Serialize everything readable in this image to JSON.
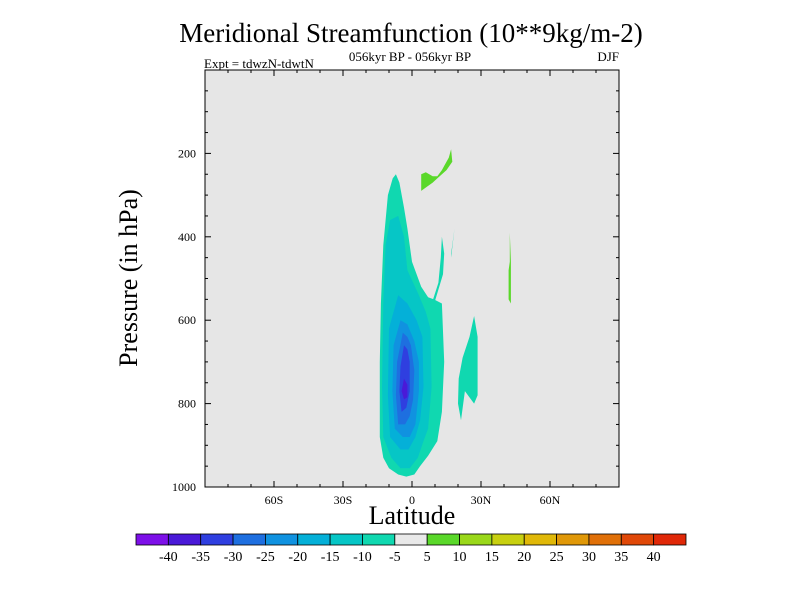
{
  "chart_data": {
    "type": "contour",
    "title": "Meridional Streamfunction (10**9kg/m-2)",
    "subtitle_left": "Expt = tdwzN-tdwtN",
    "subtitle_center": "056kyr BP - 056kyr BP",
    "subtitle_right": "DJF",
    "xlabel": "Latitude",
    "ylabel": "Pressure (in hPa)",
    "xlim": [
      -90,
      90
    ],
    "ylim": [
      0,
      1000
    ],
    "y_inverted": true,
    "x_ticks": [
      -60,
      -30,
      0,
      30,
      60
    ],
    "x_tick_labels": [
      "60S",
      "30S",
      "0",
      "30N",
      "60N"
    ],
    "y_ticks": [
      200,
      400,
      600,
      800,
      1000
    ],
    "y_tick_labels": [
      "200",
      "400",
      "600",
      "800",
      "1000"
    ],
    "plot_background": "#e6e6e6",
    "colorbar": {
      "levels": [
        -40,
        -35,
        -30,
        -25,
        -20,
        -15,
        -10,
        -5,
        5,
        10,
        15,
        20,
        25,
        30,
        35,
        40
      ],
      "labels": [
        "-40",
        "-35",
        "-30",
        "-25",
        "-20",
        "-15",
        "-10",
        "-5",
        "5",
        "10",
        "15",
        "20",
        "25",
        "30",
        "35",
        "40"
      ],
      "colors": [
        "#7d10e8",
        "#4a19d8",
        "#2f3fe0",
        "#1e6fe0",
        "#1092e0",
        "#04b0d8",
        "#06c6c6",
        "#10d8b0",
        "#e9e9e9",
        "#5ad82a",
        "#9ad81a",
        "#c8d010",
        "#e0b808",
        "#e09808",
        "#e07008",
        "#e04808",
        "#e02808"
      ]
    },
    "contours": [
      {
        "value_range": "-10 to -5",
        "color": "#10d8b0",
        "points": [
          [
            -8.4,
            260
          ],
          [
            -10.5,
            300
          ],
          [
            -12.5,
            420
          ],
          [
            -13.5,
            560
          ],
          [
            -14,
            700
          ],
          [
            -14,
            880
          ],
          [
            -12.5,
            930
          ],
          [
            -10,
            955
          ],
          [
            -6,
            970
          ],
          [
            -2.5,
            975
          ],
          [
            1,
            970
          ],
          [
            3.5,
            950
          ],
          [
            7,
            925
          ],
          [
            11,
            890
          ],
          [
            13,
            820
          ],
          [
            14,
            700
          ],
          [
            13,
            560
          ],
          [
            9.5,
            550
          ],
          [
            7,
            545
          ],
          [
            4,
            520
          ],
          [
            0,
            460
          ],
          [
            -2,
            380
          ],
          [
            -3.5,
            330
          ],
          [
            -5.5,
            270
          ],
          [
            -7,
            250
          ]
        ]
      },
      {
        "value_range": "-10 to -5",
        "color": "#10d8b0",
        "points": [
          [
            8.5,
            580
          ],
          [
            10.5,
            545
          ],
          [
            13.5,
            490
          ],
          [
            14,
            440
          ],
          [
            13,
            400
          ],
          [
            12.5,
            450
          ],
          [
            11.5,
            510
          ],
          [
            8,
            570
          ]
        ]
      },
      {
        "value_range": "-10 to -5",
        "color": "#10d8b0",
        "points": [
          [
            17,
            450
          ],
          [
            18.5,
            380
          ],
          [
            17.5,
            420
          ],
          [
            17,
            440
          ]
        ]
      },
      {
        "value_range": "-10 to -5",
        "color": "#10d8b0",
        "points": [
          [
            20.3,
            740
          ],
          [
            22,
            690
          ],
          [
            25,
            640
          ],
          [
            27,
            590
          ],
          [
            28.5,
            640
          ],
          [
            28.5,
            780
          ],
          [
            27,
            800
          ],
          [
            23,
            770
          ],
          [
            21.3,
            840
          ],
          [
            20,
            800
          ]
        ]
      },
      {
        "value_range": "-15 to -10",
        "color": "#06c6c6",
        "points": [
          [
            -9.5,
            360
          ],
          [
            -11.5,
            420
          ],
          [
            -12.5,
            560
          ],
          [
            -13,
            760
          ],
          [
            -12.5,
            880
          ],
          [
            -9,
            930
          ],
          [
            -5,
            955
          ],
          [
            -1,
            955
          ],
          [
            2.5,
            930
          ],
          [
            5,
            890
          ],
          [
            7,
            860
          ],
          [
            8.5,
            760
          ],
          [
            8,
            620
          ],
          [
            6,
            580
          ],
          [
            3,
            540
          ],
          [
            -2,
            480
          ],
          [
            -3.5,
            400
          ],
          [
            -6,
            350
          ]
        ]
      },
      {
        "value_range": "-20 to -15",
        "color": "#04b0d8",
        "points": [
          [
            -6,
            540
          ],
          [
            -10,
            620
          ],
          [
            -10.5,
            780
          ],
          [
            -9.5,
            880
          ],
          [
            -5,
            910
          ],
          [
            -1.5,
            910
          ],
          [
            1.5,
            880
          ],
          [
            3.5,
            840
          ],
          [
            5,
            760
          ],
          [
            4.5,
            640
          ],
          [
            2,
            600
          ],
          [
            -2,
            560
          ]
        ]
      },
      {
        "value_range": "-25 to -20",
        "color": "#1092e0",
        "points": [
          [
            -5,
            600
          ],
          [
            -8,
            660
          ],
          [
            -8.5,
            770
          ],
          [
            -7.5,
            860
          ],
          [
            -4,
            880
          ],
          [
            -1,
            880
          ],
          [
            1.5,
            850
          ],
          [
            3,
            770
          ],
          [
            3,
            700
          ],
          [
            1,
            650
          ],
          [
            -2,
            610
          ]
        ]
      },
      {
        "value_range": "-30 to -25",
        "color": "#1e6fe0",
        "points": [
          [
            -4,
            630
          ],
          [
            -6.5,
            700
          ],
          [
            -7,
            780
          ],
          [
            -6,
            850
          ],
          [
            -3,
            850
          ],
          [
            -1,
            830
          ],
          [
            0.5,
            790
          ],
          [
            1,
            720
          ],
          [
            -0.5,
            660
          ],
          [
            -2,
            640
          ]
        ]
      },
      {
        "value_range": "-35 to -30",
        "color": "#2f3fe0",
        "points": [
          [
            -3.5,
            660
          ],
          [
            -5,
            710
          ],
          [
            -5.5,
            770
          ],
          [
            -4.5,
            820
          ],
          [
            -2.5,
            810
          ],
          [
            -1,
            770
          ],
          [
            -1,
            700
          ],
          [
            -2,
            670
          ]
        ]
      },
      {
        "value_range": "-40 to -35",
        "color": "#4a19d8",
        "points": [
          [
            -3.5,
            740
          ],
          [
            -4.5,
            770
          ],
          [
            -3.5,
            790
          ],
          [
            -2,
            785
          ],
          [
            -2,
            755
          ]
        ]
      },
      {
        "value_range": "5 to 10",
        "color": "#5ad82a",
        "points": [
          [
            4,
            250
          ],
          [
            6,
            245
          ],
          [
            9,
            255
          ],
          [
            11,
            255
          ],
          [
            13,
            240
          ],
          [
            14,
            230
          ],
          [
            16,
            210
          ],
          [
            17,
            190
          ],
          [
            17.5,
            220
          ],
          [
            15,
            240
          ],
          [
            13,
            250
          ],
          [
            11,
            260
          ],
          [
            9,
            270
          ],
          [
            6.5,
            280
          ],
          [
            4,
            290
          ]
        ]
      },
      {
        "value_range": "5 to 10",
        "color": "#5ad82a",
        "points": [
          [
            42.5,
            390
          ],
          [
            42.5,
            460
          ],
          [
            42,
            480
          ],
          [
            42,
            550
          ],
          [
            43,
            560
          ],
          [
            43,
            460
          ]
        ]
      }
    ]
  }
}
